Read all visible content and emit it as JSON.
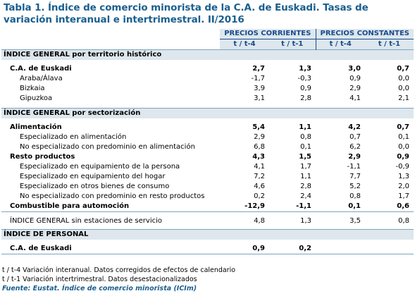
{
  "title": "Tabla 1. Índice de comercio minorista de la C.A. de Euskadi. Tasas de variación interanual e intertrimestral. II/2016",
  "header": {
    "group1": "PRECIOS CORRIENTES",
    "group2": "PRECIOS CONSTANTES",
    "sub1": "t / t-4",
    "sub2": "t / t-1",
    "sub3": "t / t-4",
    "sub4": "t / t-1"
  },
  "sections": {
    "territorio": {
      "heading": "ÍNDICE GENERAL por territorio histórico",
      "rows": [
        {
          "label": "C.A. de Euskadi",
          "v": [
            "2,7",
            "1,3",
            "3,0",
            "0,7"
          ]
        },
        {
          "label": "Araba/Álava",
          "v": [
            "-1,7",
            "-0,3",
            "0,9",
            "0,0"
          ]
        },
        {
          "label": "Bizkaia",
          "v": [
            "3,9",
            "0,9",
            "2,9",
            "0,0"
          ]
        },
        {
          "label": "Gipuzkoa",
          "v": [
            "3,1",
            "2,8",
            "4,1",
            "2,1"
          ]
        }
      ]
    },
    "sectorizacion": {
      "heading": "ÍNDICE GENERAL por sectorización",
      "rows": [
        {
          "label": "Alimentación",
          "v": [
            "5,4",
            "1,1",
            "4,2",
            "0,7"
          ]
        },
        {
          "label": "Especializado en alimentación",
          "v": [
            "2,9",
            "0,8",
            "0,7",
            "0,1"
          ]
        },
        {
          "label": "No especializado con predominio en alimentación",
          "v": [
            "6,8",
            "0,1",
            "6,2",
            "0,0"
          ]
        },
        {
          "label": "Resto productos",
          "v": [
            "4,3",
            "1,5",
            "2,9",
            "0,9"
          ]
        },
        {
          "label": "Especializado en equipamiento de la persona",
          "v": [
            "4,1",
            "1,7",
            "-1,1",
            "-0,9"
          ]
        },
        {
          "label": "Especializado en equipamiento del hogar",
          "v": [
            "7,2",
            "1,1",
            "7,7",
            "1,3"
          ]
        },
        {
          "label": "Especializado en otros bienes de consumo",
          "v": [
            "4,6",
            "2,8",
            "5,2",
            "2,0"
          ]
        },
        {
          "label": "No especializado con predominio en resto productos",
          "v": [
            "0,2",
            "2,4",
            "0,8",
            "1,7"
          ]
        },
        {
          "label": "Combustible para automoción",
          "v": [
            "-12,9",
            "-1,1",
            "0,1",
            "0,6"
          ]
        }
      ]
    },
    "sin_estaciones": {
      "label": "ÍNDICE GENERAL sin estaciones de servicio",
      "v": [
        "4,8",
        "1,3",
        "3,5",
        "0,8"
      ]
    },
    "personal": {
      "heading": "ÍNDICE DE PERSONAL",
      "rows": [
        {
          "label": "C.A. de Euskadi",
          "v": [
            "0,9",
            "0,2",
            "",
            ""
          ]
        }
      ]
    }
  },
  "notes": {
    "n1": "t / t-4 Variación interanual. Datos corregidos de efectos de calendario",
    "n2": "t / t-1 Variación intertrimestral. Datos desestacionalizados",
    "source": "Fuente: Eustat. Índice de comercio minorista (ICIm)"
  }
}
